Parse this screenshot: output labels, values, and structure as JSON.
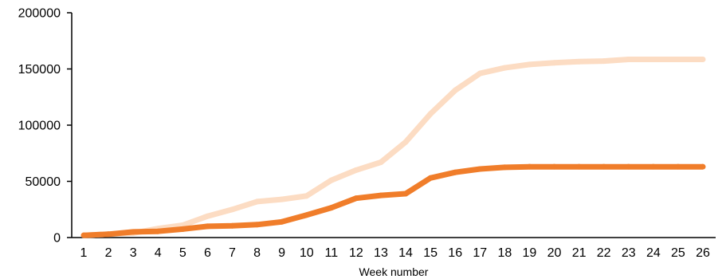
{
  "chart_data": {
    "type": "line",
    "title": "",
    "xlabel": "Week number",
    "ylabel": "",
    "x": [
      1,
      2,
      3,
      4,
      5,
      6,
      7,
      8,
      9,
      10,
      11,
      12,
      13,
      14,
      15,
      16,
      17,
      18,
      19,
      20,
      21,
      22,
      23,
      24,
      25,
      26
    ],
    "ylim": [
      0,
      200000
    ],
    "yticks": [
      0,
      50000,
      100000,
      150000,
      200000
    ],
    "grid": false,
    "legend": "none",
    "series": [
      {
        "color": "#FCDCC3",
        "values": [
          2000,
          3000,
          4000,
          8000,
          11000,
          19000,
          25000,
          32000,
          34000,
          37000,
          51000,
          60000,
          67000,
          85000,
          110000,
          131000,
          146000,
          151000,
          154000,
          155500,
          156500,
          157000,
          158500,
          158500,
          158500,
          158500
        ]
      },
      {
        "color": "#F07D2A",
        "values": [
          2000,
          3000,
          5000,
          5500,
          7500,
          10000,
          10500,
          11500,
          14000,
          20000,
          26500,
          35000,
          37500,
          39000,
          53000,
          58000,
          61000,
          62500,
          63000,
          63000,
          63000,
          63000,
          63000,
          63000,
          63000,
          63000
        ]
      }
    ]
  }
}
